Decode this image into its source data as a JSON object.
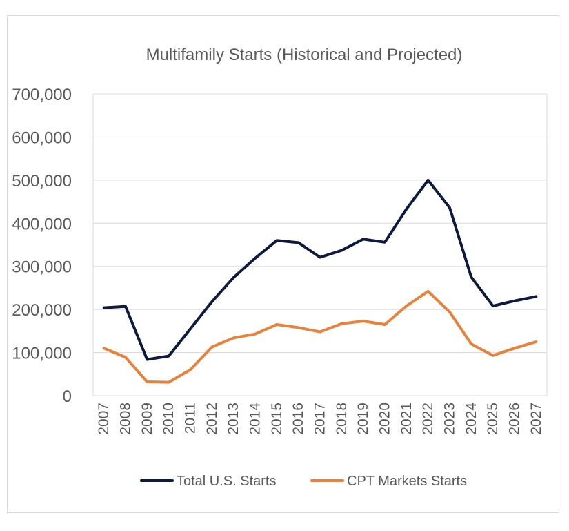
{
  "chart_data": {
    "type": "line",
    "title": "Multifamily Starts (Historical and Projected)",
    "xlabel": "",
    "ylabel": "",
    "ylim": [
      0,
      700000
    ],
    "y_ticks": [
      0,
      100000,
      200000,
      300000,
      400000,
      500000,
      600000,
      700000
    ],
    "y_tick_labels": [
      "0",
      "100,000",
      "200,000",
      "300,000",
      "400,000",
      "500,000",
      "600,000",
      "700,000"
    ],
    "grid": true,
    "legend_position": "bottom",
    "categories": [
      "2007",
      "2008",
      "2009",
      "2010",
      "2011",
      "2012",
      "2013",
      "2014",
      "2015",
      "2016",
      "2017",
      "2018",
      "2019",
      "2020",
      "2021",
      "2022",
      "2023",
      "2024",
      "2025",
      "2026",
      "2027"
    ],
    "series": [
      {
        "name": "Total U.S. Starts",
        "color": "#0d1a3d",
        "values": [
          204000,
          207000,
          84000,
          92000,
          155000,
          218000,
          274000,
          319000,
          360000,
          355000,
          321000,
          337000,
          363000,
          356000,
          433000,
          500000,
          436000,
          275000,
          208000,
          220000,
          230000
        ]
      },
      {
        "name": "CPT Markets Starts",
        "color": "#e8823a",
        "values": [
          110000,
          89000,
          32000,
          31000,
          60000,
          113000,
          134000,
          143000,
          165000,
          158000,
          148000,
          167000,
          173000,
          165000,
          208000,
          242000,
          194000,
          120000,
          93000,
          110000,
          125000
        ]
      }
    ]
  }
}
